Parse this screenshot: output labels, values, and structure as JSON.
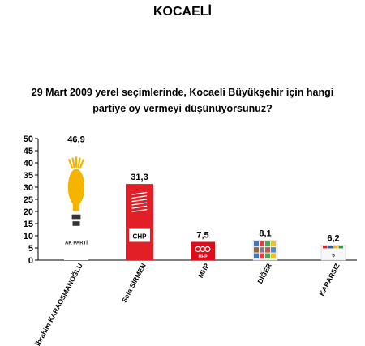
{
  "page": {
    "title": "KOCAELİ",
    "question_line1": "29 Mart 2009 yerel seçimlerinde, Kocaeli Büyükşehir için hangi",
    "question_line2": "partiye oy vermeyi düşünüyorsunuz?"
  },
  "chart_data": {
    "type": "bar",
    "title": "",
    "xlabel": "",
    "ylabel": "",
    "ylim": [
      0,
      50
    ],
    "y_ticks": [
      0,
      5,
      10,
      15,
      20,
      25,
      30,
      35,
      40,
      45,
      50
    ],
    "grid": false,
    "legend": "none",
    "categories": [
      "İbrahim KARAOSMANOĞLU",
      "Sefa SİRMEN",
      "MHP",
      "DİĞER",
      "KARARSIZ"
    ],
    "values": [
      46.9,
      31.3,
      7.5,
      8.1,
      6.2
    ],
    "value_labels": [
      "46,9",
      "31,3",
      "7,5",
      "8,1",
      "6,2"
    ],
    "bar_fills": [
      "logo-ak-parti",
      "logo-chp",
      "logo-mhp",
      "icon-collage-diger",
      "icon-collage-kararsiz"
    ],
    "logo_texts": {
      "ak_parti": "AK PARTİ",
      "chp": "CHP",
      "mhp": "MHP",
      "question_mark": "?"
    },
    "colors": {
      "ak_yellow": "#f5b400",
      "ak_blue": "#1c4f9c",
      "chp_red": "#e21f26",
      "mhp_red": "#e30a17",
      "axis": "#000000"
    }
  }
}
